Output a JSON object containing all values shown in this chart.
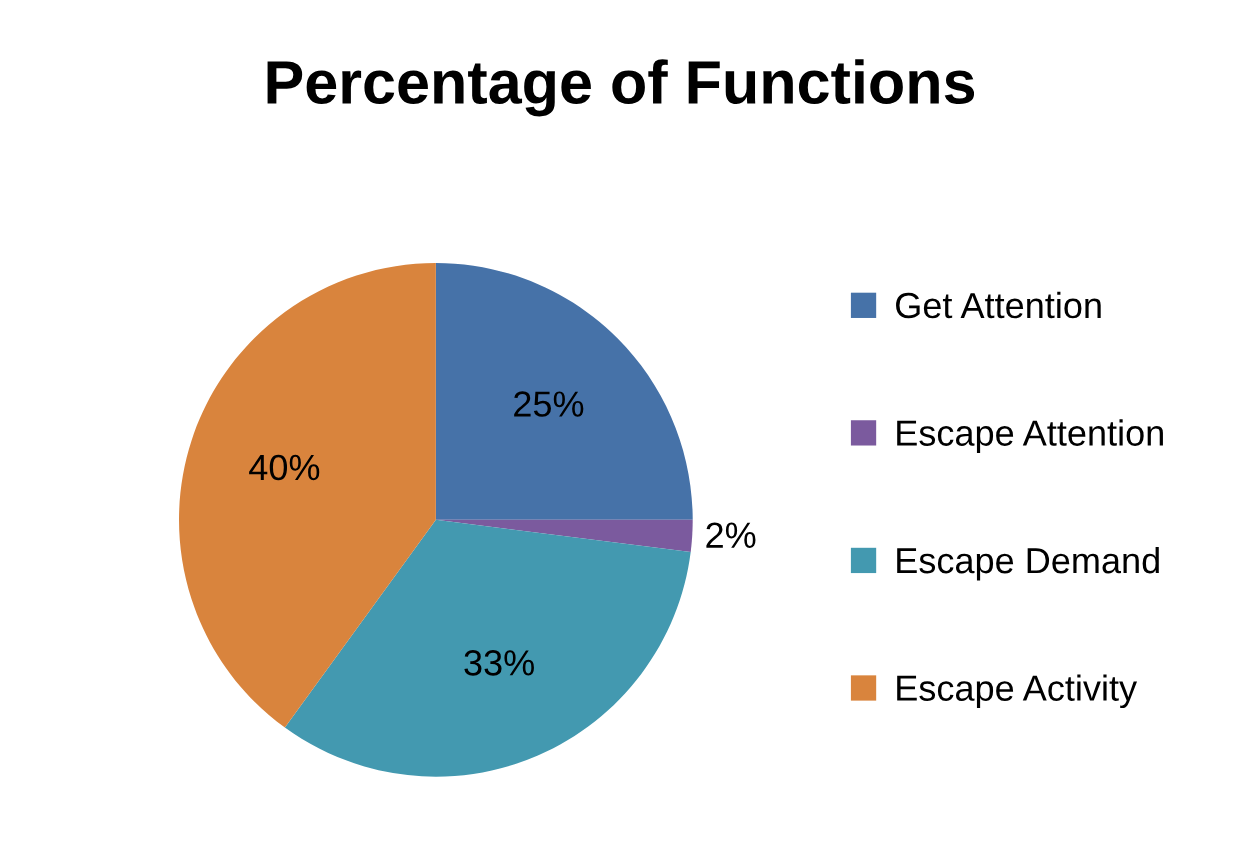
{
  "chart_data": {
    "type": "pie",
    "title": "Percentage of Functions",
    "categories": [
      "Get Attention",
      "Escape Attention",
      "Escape Demand",
      "Escape Activity"
    ],
    "values": [
      25,
      2,
      33,
      40
    ],
    "colors": [
      "#4672a8",
      "#7b5a9e",
      "#4399b0",
      "#d9843d"
    ],
    "value_labels": [
      "25%",
      "2%",
      "33%",
      "40%"
    ],
    "legend": "right"
  }
}
